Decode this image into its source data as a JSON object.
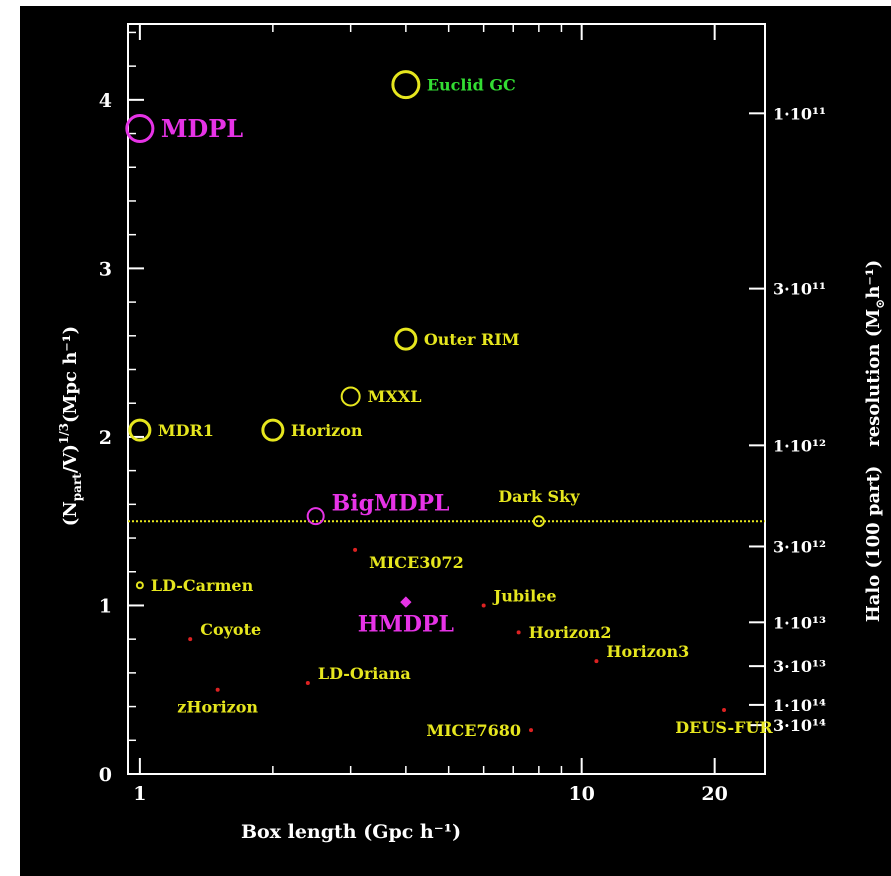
{
  "chart_data": {
    "type": "scatter",
    "xlabel": "Box length (Gpc h⁻¹)",
    "ylabel": "(N",
    "ylabel_sub": "part",
    "ylabel_rest": "/V)",
    "ylabel_sup": "1/3",
    "ylabel_tail": "(Mpc h⁻¹)",
    "y2label": "Halo (100 part)   resolution (M",
    "y2label_sub": "⊙",
    "y2label_tail": "h⁻¹)",
    "x_scale": "log",
    "xlim": [
      0.94,
      26
    ],
    "ylim": [
      0,
      4.45
    ],
    "x_ticks": [
      {
        "value": 1,
        "label": "1"
      },
      {
        "value": 10,
        "label": "10"
      },
      {
        "value": 20,
        "label": "20"
      }
    ],
    "y_ticks": [
      {
        "value": 0,
        "label": "0"
      },
      {
        "value": 1,
        "label": "1"
      },
      {
        "value": 2,
        "label": "2"
      },
      {
        "value": 3,
        "label": "3"
      },
      {
        "value": 4,
        "label": "4"
      }
    ],
    "y2_ticks": [
      {
        "value": 3.92,
        "label": "1·10¹¹"
      },
      {
        "value": 2.88,
        "label": "3·10¹¹"
      },
      {
        "value": 1.95,
        "label": "1·10¹²"
      },
      {
        "value": 1.35,
        "label": "3·10¹²"
      },
      {
        "value": 0.9,
        "label": "1·10¹³"
      },
      {
        "value": 0.64,
        "label": "3·10¹³"
      },
      {
        "value": 0.41,
        "label": "1·10¹⁴"
      },
      {
        "value": 0.29,
        "label": "3·10¹⁴"
      }
    ],
    "reference_line": {
      "y": 1.5,
      "color": "#e6e61e"
    },
    "points": [
      {
        "name": "MDPL",
        "x": 1.0,
        "y": 3.83,
        "size": 13,
        "color": "#e633e6",
        "label_size": 24,
        "label_pos": "right"
      },
      {
        "name": "Euclid GC",
        "x": 4.0,
        "y": 4.09,
        "size": 13,
        "color": "#e6e61e",
        "label_color": "#33dd33",
        "label_size": 16,
        "label_pos": "right"
      },
      {
        "name": "Outer RIM",
        "x": 4.0,
        "y": 2.58,
        "size": 10,
        "color": "#e6e61e",
        "label_size": 16,
        "label_pos": "right"
      },
      {
        "name": "MXXL",
        "x": 3.0,
        "y": 2.24,
        "size": 9,
        "color": "#e6e61e",
        "label_size": 16,
        "label_pos": "right"
      },
      {
        "name": "MDR1",
        "x": 1.0,
        "y": 2.04,
        "size": 10,
        "color": "#e6e61e",
        "label_size": 16,
        "label_pos": "right"
      },
      {
        "name": "Horizon",
        "x": 2.0,
        "y": 2.04,
        "size": 10,
        "color": "#e6e61e",
        "label_size": 16,
        "label_pos": "right"
      },
      {
        "name": "BigMDPL",
        "x": 2.5,
        "y": 1.53,
        "size": 8,
        "color": "#e633e6",
        "label_size": 22,
        "label_pos": "upper-right"
      },
      {
        "name": "Dark Sky",
        "x": 8.0,
        "y": 1.5,
        "size": 5,
        "color": "#e6e61e",
        "label_size": 16,
        "label_pos": "above"
      },
      {
        "name": "MICE3072",
        "x": 3.07,
        "y": 1.33,
        "size": 2,
        "color": "#dd2222",
        "label_color": "#e6e61e",
        "label_size": 16,
        "label_pos": "lower-right"
      },
      {
        "name": "LD-Carmen",
        "x": 1.0,
        "y": 1.12,
        "size": 3,
        "color": "#e6e61e",
        "label_size": 16,
        "label_pos": "right"
      },
      {
        "name": "Jubilee",
        "x": 6.0,
        "y": 1.0,
        "size": 2,
        "color": "#dd2222",
        "label_color": "#e6e61e",
        "label_size": 16,
        "label_pos": "upper-right"
      },
      {
        "name": "HMDPL",
        "x": 4.0,
        "y": 1.02,
        "size": 4,
        "color": "#e633e6",
        "label_size": 22,
        "label_pos": "below"
      },
      {
        "name": "Coyote",
        "x": 1.3,
        "y": 0.8,
        "size": 2,
        "color": "#dd2222",
        "label_color": "#e6e61e",
        "label_size": 16,
        "label_pos": "upper-right"
      },
      {
        "name": "Horizon2",
        "x": 7.2,
        "y": 0.84,
        "size": 2,
        "color": "#dd2222",
        "label_color": "#e6e61e",
        "label_size": 16,
        "label_pos": "right"
      },
      {
        "name": "Horizon3",
        "x": 10.8,
        "y": 0.67,
        "size": 2,
        "color": "#dd2222",
        "label_color": "#e6e61e",
        "label_size": 16,
        "label_pos": "upper-right"
      },
      {
        "name": "LD-Oriana",
        "x": 2.4,
        "y": 0.54,
        "size": 2,
        "color": "#dd2222",
        "label_color": "#e6e61e",
        "label_size": 16,
        "label_pos": "upper-right"
      },
      {
        "name": "zHorizon",
        "x": 1.5,
        "y": 0.5,
        "size": 2,
        "color": "#dd2222",
        "label_color": "#e6e61e",
        "label_size": 16,
        "label_pos": "below"
      },
      {
        "name": "MICE7680",
        "x": 7.68,
        "y": 0.26,
        "size": 2,
        "color": "#dd2222",
        "label_color": "#e6e61e",
        "label_size": 16,
        "label_pos": "left"
      },
      {
        "name": "DEUS-FUR",
        "x": 21.0,
        "y": 0.38,
        "size": 2,
        "color": "#dd2222",
        "label_color": "#e6e61e",
        "label_size": 16,
        "label_pos": "below"
      }
    ]
  }
}
